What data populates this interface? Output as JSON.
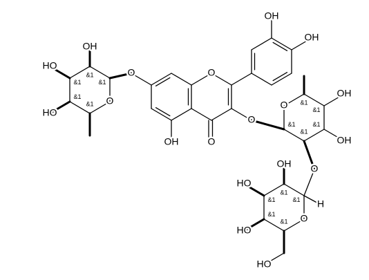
{
  "labels": [
    "OH",
    "OH",
    "O",
    "O",
    "OH",
    "O",
    "O",
    "O",
    "OH",
    "OH",
    "O",
    "H",
    "OH",
    "HO",
    "HO",
    "O",
    "HO",
    "OH",
    "HO",
    "HO",
    "O"
  ],
  "stereo": [
    "&1",
    "&1",
    "&1",
    "&1",
    "&1",
    "&1",
    "&1",
    "&1",
    "&1",
    "&1",
    "&1",
    "&1",
    "&1",
    "&1",
    "&1"
  ]
}
